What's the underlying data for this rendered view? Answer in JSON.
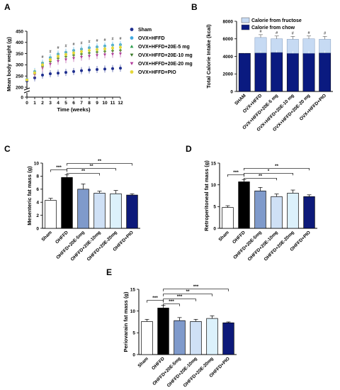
{
  "panel_labels": {
    "a": "A",
    "b": "B",
    "c": "C",
    "d": "D",
    "e": "E"
  },
  "sig_marks": {
    "three": "***",
    "two": "**",
    "one": "*",
    "hash": "#"
  },
  "chart_data": [
    {
      "panel": "A",
      "type": "scatter",
      "xlabel": "Time (weeks)",
      "ylabel": "Mean body weight (g)",
      "x": [
        0,
        1,
        2,
        3,
        4,
        5,
        6,
        7,
        8,
        9,
        10,
        11,
        12
      ],
      "xlim": [
        0,
        12
      ],
      "ylim": [
        0,
        450
      ],
      "yticks": [
        0,
        200,
        250,
        300,
        350,
        400,
        450
      ],
      "axis_break": true,
      "legend_position": "right",
      "series": [
        {
          "name": "Sham",
          "marker": "circle",
          "color": "#1f2f8f",
          "values": [
            228,
            242,
            254,
            260,
            263,
            266,
            270,
            274,
            277,
            279,
            281,
            283,
            285
          ]
        },
        {
          "name": "OVX+HFFD",
          "marker": "circle",
          "color": "#3fa9e0",
          "values": [
            235,
            270,
            308,
            332,
            348,
            356,
            364,
            370,
            376,
            380,
            384,
            388,
            390
          ]
        },
        {
          "name": "OVX+HFFD+20E-5 mg",
          "marker": "triangle-up",
          "color": "#2f9e4f",
          "values": [
            232,
            262,
            297,
            318,
            332,
            340,
            347,
            352,
            356,
            360,
            363,
            366,
            368
          ]
        },
        {
          "name": "OVX+HFFD+20E-10 mg",
          "marker": "triangle-down",
          "color": "#3a7a2a",
          "values": [
            232,
            258,
            292,
            312,
            326,
            334,
            340,
            345,
            350,
            354,
            357,
            360,
            362
          ]
        },
        {
          "name": "OVX+HFFD+20E-20 mg",
          "marker": "triangle-down",
          "color": "#b03a9a",
          "values": [
            230,
            255,
            285,
            303,
            316,
            323,
            329,
            334,
            338,
            342,
            345,
            347,
            349
          ]
        },
        {
          "name": "OVX+HFFD+PIO",
          "marker": "circle",
          "color": "#e5d83a",
          "values": [
            233,
            264,
            300,
            323,
            338,
            346,
            353,
            359,
            364,
            368,
            371,
            375,
            378
          ]
        }
      ],
      "annotations": [
        "#",
        "#",
        "#",
        "#",
        "#",
        "#",
        "#",
        "#",
        "#",
        "#",
        "#"
      ]
    },
    {
      "panel": "B",
      "type": "bar",
      "stacked": true,
      "ylabel": "Total Calorie Intake (kcal)",
      "ylim": [
        0,
        8000
      ],
      "yticks": [
        0,
        2000,
        4000,
        6000,
        8000
      ],
      "legend_position": "top",
      "categories": [
        "SHAM",
        "OVX+HFFD",
        "OVX+HFFD+20E-5 mg",
        "OVX+HFFD+20E-10 mg",
        "OVX+HFFD+20E-20 mg",
        "OVX+HFFD+PIO"
      ],
      "series": [
        {
          "name": "Calorie from chow",
          "color": "#0a1a80",
          "values": [
            4350,
            4400,
            4450,
            4350,
            4350,
            4400
          ]
        },
        {
          "name": "Calorie from fructose",
          "color": "#c6daf3",
          "values": [
            0,
            1750,
            1550,
            1600,
            1650,
            1550
          ]
        }
      ],
      "annotations": [
        "#",
        "#",
        "#",
        "#",
        "#"
      ]
    },
    {
      "panel": "C",
      "type": "bar",
      "ylabel": "Mesenteric fat mass (g)",
      "ylim": [
        0,
        10
      ],
      "yticks": [
        0,
        2,
        4,
        6,
        8,
        10
      ],
      "categories": [
        "Sham",
        "OHFFD",
        "OHFFD+20E-5mg",
        "OHFFD+20E-10mg",
        "OHFFD+20E-20mg",
        "OHFFD+PIO"
      ],
      "values": [
        4.3,
        7.8,
        6.0,
        5.4,
        5.3,
        5.1
      ],
      "errors": [
        0.3,
        0.4,
        0.8,
        0.3,
        0.5,
        0.2
      ],
      "colors": [
        "#ffffff",
        "#000000",
        "#7f9acb",
        "#cfe0f5",
        "#dcf1fb",
        "#0d1a7a"
      ],
      "brackets": [
        {
          "from": 0,
          "to": 1,
          "label": "***"
        },
        {
          "from": 1,
          "to": 3,
          "label": "**"
        },
        {
          "from": 1,
          "to": 4,
          "label": "**"
        },
        {
          "from": 1,
          "to": 5,
          "label": "**"
        }
      ]
    },
    {
      "panel": "D",
      "type": "bar",
      "ylabel": "Retroperitoneal fat mass (g)",
      "ylim": [
        0,
        15
      ],
      "yticks": [
        0,
        5,
        10,
        15
      ],
      "categories": [
        "Sham",
        "OHFFD",
        "OHFFD+20E-5mg",
        "OHFFD+20E-10mg",
        "OHFFD+20E-20mg",
        "OHFFD+PIO"
      ],
      "values": [
        4.8,
        10.7,
        8.6,
        7.3,
        8.1,
        7.3
      ],
      "errors": [
        0.4,
        0.5,
        0.8,
        0.6,
        0.7,
        0.4
      ],
      "colors": [
        "#ffffff",
        "#000000",
        "#7f9acb",
        "#cfe0f5",
        "#dcf1fb",
        "#0d1a7a"
      ],
      "brackets": [
        {
          "from": 0,
          "to": 1,
          "label": "***"
        },
        {
          "from": 1,
          "to": 3,
          "label": "**"
        },
        {
          "from": 1,
          "to": 4,
          "label": "*"
        },
        {
          "from": 1,
          "to": 5,
          "label": "**"
        }
      ]
    },
    {
      "panel": "E",
      "type": "bar",
      "ylabel": "Periovarain fat mass (g)",
      "ylim": [
        0,
        15
      ],
      "yticks": [
        0,
        5,
        10,
        15
      ],
      "categories": [
        "Sham",
        "OHFFD",
        "OHFFD+20E-5mg",
        "OHFFD+20E-10mg",
        "OHFFD+20E-20mg",
        "OHFFD+PIO"
      ],
      "values": [
        7.6,
        10.7,
        7.8,
        7.6,
        8.3,
        7.3
      ],
      "errors": [
        0.5,
        0.6,
        0.7,
        0.5,
        0.6,
        0.2
      ],
      "colors": [
        "#ffffff",
        "#000000",
        "#7f9acb",
        "#cfe0f5",
        "#dcf1fb",
        "#0d1a7a"
      ],
      "brackets": [
        {
          "from": 0,
          "to": 1,
          "label": "***"
        },
        {
          "from": 1,
          "to": 2,
          "label": "***"
        },
        {
          "from": 1,
          "to": 3,
          "label": "***"
        },
        {
          "from": 1,
          "to": 4,
          "label": "**"
        },
        {
          "from": 1,
          "to": 5,
          "label": "***"
        }
      ]
    }
  ]
}
